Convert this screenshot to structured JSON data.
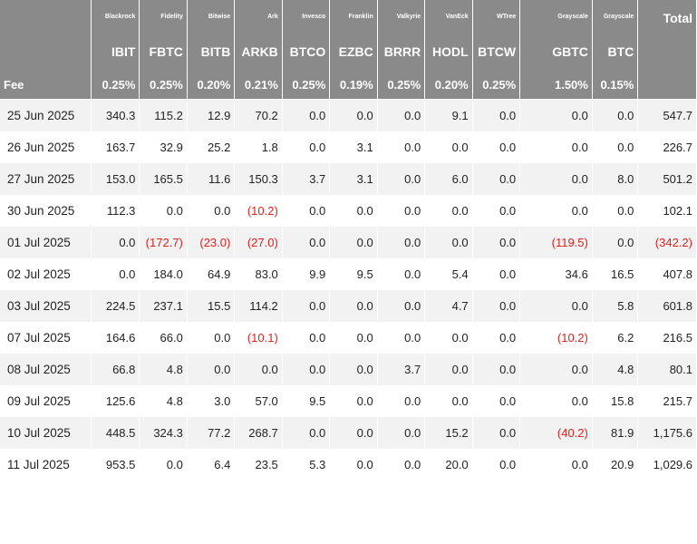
{
  "issuers": [
    "Blackrock",
    "Fidelity",
    "Bitwise",
    "Ark",
    "Invesco",
    "Franklin",
    "Valkyrie",
    "VanEck",
    "WTree",
    "Grayscale",
    "Grayscale"
  ],
  "total_label": "Total",
  "tickers": [
    "IBIT",
    "FBTC",
    "BITB",
    "ARKB",
    "BTCO",
    "EZBC",
    "BRRR",
    "HODL",
    "BTCW",
    "GBTC",
    "BTC"
  ],
  "fee_label": "Fee",
  "fees": [
    "0.25%",
    "0.25%",
    "0.20%",
    "0.21%",
    "0.25%",
    "0.19%",
    "0.25%",
    "0.20%",
    "0.25%",
    "1.50%",
    "0.15%"
  ],
  "rows": [
    {
      "date": "25 Jun 2025",
      "values": [
        "340.3",
        "115.2",
        "12.9",
        "70.2",
        "0.0",
        "0.0",
        "0.0",
        "9.1",
        "0.0",
        "0.0",
        "0.0",
        "547.7"
      ]
    },
    {
      "date": "26 Jun 2025",
      "values": [
        "163.7",
        "32.9",
        "25.2",
        "1.8",
        "0.0",
        "3.1",
        "0.0",
        "0.0",
        "0.0",
        "0.0",
        "0.0",
        "226.7"
      ]
    },
    {
      "date": "27 Jun 2025",
      "values": [
        "153.0",
        "165.5",
        "11.6",
        "150.3",
        "3.7",
        "3.1",
        "0.0",
        "6.0",
        "0.0",
        "0.0",
        "8.0",
        "501.2"
      ]
    },
    {
      "date": "30 Jun 2025",
      "values": [
        "112.3",
        "0.0",
        "0.0",
        "(10.2)",
        "0.0",
        "0.0",
        "0.0",
        "0.0",
        "0.0",
        "0.0",
        "0.0",
        "102.1"
      ]
    },
    {
      "date": "01 Jul 2025",
      "values": [
        "0.0",
        "(172.7)",
        "(23.0)",
        "(27.0)",
        "0.0",
        "0.0",
        "0.0",
        "0.0",
        "0.0",
        "(119.5)",
        "0.0",
        "(342.2)"
      ]
    },
    {
      "date": "02 Jul 2025",
      "values": [
        "0.0",
        "184.0",
        "64.9",
        "83.0",
        "9.9",
        "9.5",
        "0.0",
        "5.4",
        "0.0",
        "34.6",
        "16.5",
        "407.8"
      ]
    },
    {
      "date": "03 Jul 2025",
      "values": [
        "224.5",
        "237.1",
        "15.5",
        "114.2",
        "0.0",
        "0.0",
        "0.0",
        "4.7",
        "0.0",
        "0.0",
        "5.8",
        "601.8"
      ]
    },
    {
      "date": "07 Jul 2025",
      "values": [
        "164.6",
        "66.0",
        "0.0",
        "(10.1)",
        "0.0",
        "0.0",
        "0.0",
        "0.0",
        "0.0",
        "(10.2)",
        "6.2",
        "216.5"
      ]
    },
    {
      "date": "08 Jul 2025",
      "values": [
        "66.8",
        "4.8",
        "0.0",
        "0.0",
        "0.0",
        "0.0",
        "3.7",
        "0.0",
        "0.0",
        "0.0",
        "4.8",
        "80.1"
      ]
    },
    {
      "date": "09 Jul 2025",
      "values": [
        "125.6",
        "4.8",
        "3.0",
        "57.0",
        "9.5",
        "0.0",
        "0.0",
        "0.0",
        "0.0",
        "0.0",
        "15.8",
        "215.7"
      ]
    },
    {
      "date": "10 Jul 2025",
      "values": [
        "448.5",
        "324.3",
        "77.2",
        "268.7",
        "0.0",
        "0.0",
        "0.0",
        "15.2",
        "0.0",
        "(40.2)",
        "81.9",
        "1,175.6"
      ]
    },
    {
      "date": "11 Jul 2025",
      "values": [
        "953.5",
        "0.0",
        "6.4",
        "23.5",
        "5.3",
        "0.0",
        "0.0",
        "20.0",
        "0.0",
        "0.0",
        "20.9",
        "1,029.6"
      ]
    }
  ],
  "colors": {
    "header_bg": "#8a8a8a",
    "header_text": "#ffffff",
    "stripe": "#f2f2f2",
    "negative": "#e0201e",
    "text": "#222222"
  }
}
